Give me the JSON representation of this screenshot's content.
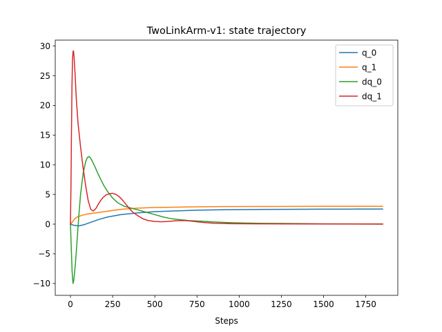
{
  "chart_data": {
    "type": "line",
    "title": "TwoLinkArm-v1: state trajectory",
    "xlabel": "Steps",
    "ylabel": "",
    "xlim": [
      -90,
      1940
    ],
    "ylim": [
      -12.0,
      31.0
    ],
    "xticks": [
      0,
      250,
      500,
      750,
      1000,
      1250,
      1500,
      1750
    ],
    "yticks": [
      -10,
      -5,
      0,
      5,
      10,
      15,
      20,
      25,
      30
    ],
    "ytick_labels": [
      "−10",
      "−5",
      "0",
      "5",
      "10",
      "15",
      "20",
      "25",
      "30"
    ],
    "grid": false,
    "legend": "top-right",
    "series": [
      {
        "name": "q_0",
        "color": "#1f77b4",
        "points": [
          [
            0,
            0
          ],
          [
            20,
            -0.2
          ],
          [
            50,
            -0.3
          ],
          [
            80,
            -0.1
          ],
          [
            120,
            0.3
          ],
          [
            170,
            0.8
          ],
          [
            220,
            1.2
          ],
          [
            300,
            1.6
          ],
          [
            400,
            1.9
          ],
          [
            500,
            2.1
          ],
          [
            600,
            2.2
          ],
          [
            750,
            2.35
          ],
          [
            900,
            2.42
          ],
          [
            1100,
            2.47
          ],
          [
            1300,
            2.5
          ],
          [
            1500,
            2.52
          ],
          [
            1700,
            2.53
          ],
          [
            1850,
            2.53
          ]
        ]
      },
      {
        "name": "q_1",
        "color": "#ff7f0e",
        "points": [
          [
            0,
            0
          ],
          [
            10,
            0.3
          ],
          [
            25,
            0.9
          ],
          [
            40,
            1.2
          ],
          [
            70,
            1.5
          ],
          [
            100,
            1.7
          ],
          [
            150,
            1.9
          ],
          [
            200,
            2.1
          ],
          [
            250,
            2.3
          ],
          [
            300,
            2.5
          ],
          [
            350,
            2.6
          ],
          [
            400,
            2.7
          ],
          [
            500,
            2.8
          ],
          [
            600,
            2.85
          ],
          [
            750,
            2.92
          ],
          [
            900,
            2.96
          ],
          [
            1200,
            2.98
          ],
          [
            1500,
            3.0
          ],
          [
            1850,
            3.0
          ]
        ]
      },
      {
        "name": "dq_0",
        "color": "#2ca02c",
        "points": [
          [
            0,
            0
          ],
          [
            5,
            -4
          ],
          [
            10,
            -8
          ],
          [
            15,
            -10.0
          ],
          [
            20,
            -9.5
          ],
          [
            30,
            -6.5
          ],
          [
            40,
            -2.5
          ],
          [
            50,
            1.5
          ],
          [
            60,
            5
          ],
          [
            75,
            8.5
          ],
          [
            90,
            10.5
          ],
          [
            100,
            11.2
          ],
          [
            110,
            11.4
          ],
          [
            120,
            11.1
          ],
          [
            140,
            10
          ],
          [
            160,
            8.7
          ],
          [
            180,
            7.5
          ],
          [
            200,
            6.4
          ],
          [
            220,
            5.5
          ],
          [
            250,
            4.4
          ],
          [
            280,
            3.6
          ],
          [
            320,
            3.0
          ],
          [
            360,
            2.7
          ],
          [
            400,
            2.4
          ],
          [
            450,
            2.0
          ],
          [
            500,
            1.6
          ],
          [
            550,
            1.2
          ],
          [
            600,
            0.9
          ],
          [
            650,
            0.75
          ],
          [
            700,
            0.6
          ],
          [
            800,
            0.45
          ],
          [
            900,
            0.3
          ],
          [
            1000,
            0.2
          ],
          [
            1100,
            0.15
          ],
          [
            1300,
            0.1
          ],
          [
            1500,
            0.05
          ],
          [
            1850,
            0.0
          ]
        ]
      },
      {
        "name": "dq_1",
        "color": "#d62728",
        "points": [
          [
            0,
            0
          ],
          [
            3,
            6
          ],
          [
            6,
            15
          ],
          [
            9,
            23
          ],
          [
            12,
            27.5
          ],
          [
            15,
            29
          ],
          [
            18,
            29.2
          ],
          [
            22,
            28
          ],
          [
            28,
            25
          ],
          [
            35,
            21
          ],
          [
            45,
            17
          ],
          [
            60,
            13
          ],
          [
            75,
            9.5
          ],
          [
            90,
            6.5
          ],
          [
            105,
            4
          ],
          [
            120,
            2.5
          ],
          [
            135,
            2.2
          ],
          [
            150,
            2.6
          ],
          [
            170,
            3.6
          ],
          [
            190,
            4.4
          ],
          [
            210,
            4.9
          ],
          [
            230,
            5.1
          ],
          [
            250,
            5.2
          ],
          [
            270,
            5.0
          ],
          [
            290,
            4.6
          ],
          [
            310,
            4.0
          ],
          [
            330,
            3.3
          ],
          [
            350,
            2.6
          ],
          [
            370,
            2.0
          ],
          [
            400,
            1.4
          ],
          [
            430,
            0.9
          ],
          [
            460,
            0.6
          ],
          [
            500,
            0.45
          ],
          [
            540,
            0.4
          ],
          [
            580,
            0.45
          ],
          [
            620,
            0.55
          ],
          [
            660,
            0.6
          ],
          [
            700,
            0.55
          ],
          [
            750,
            0.4
          ],
          [
            800,
            0.25
          ],
          [
            850,
            0.15
          ],
          [
            950,
            0.08
          ],
          [
            1100,
            0.05
          ],
          [
            1300,
            0.03
          ],
          [
            1600,
            0.02
          ],
          [
            1850,
            0.02
          ]
        ]
      }
    ]
  }
}
